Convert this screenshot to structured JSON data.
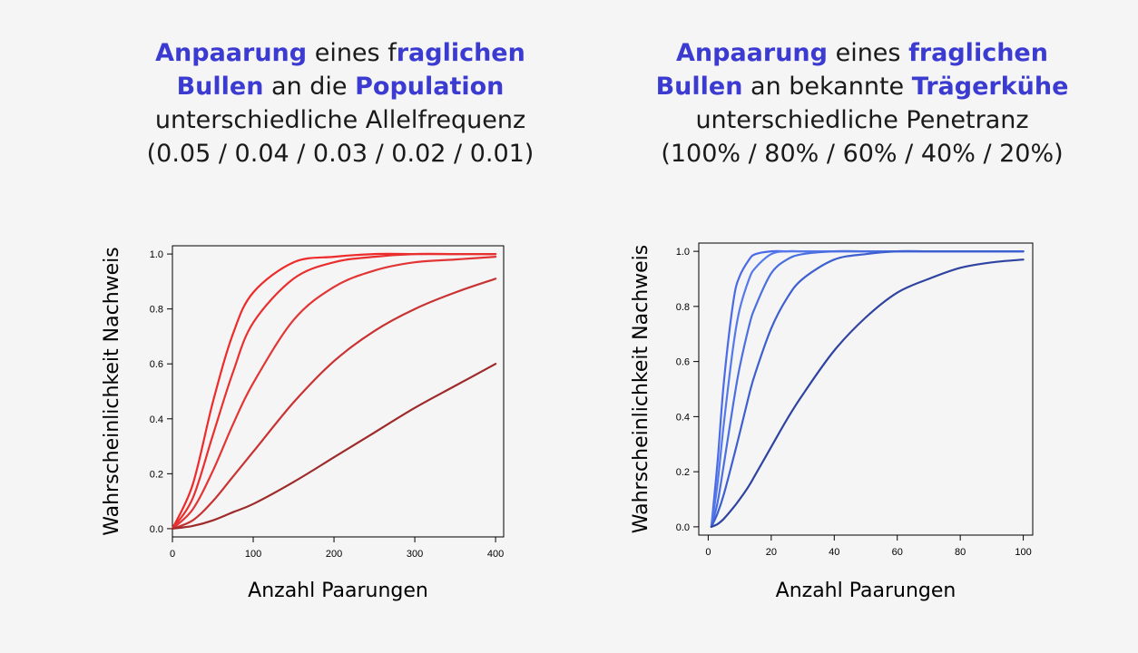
{
  "left_title": {
    "w1": "Anpaarung",
    "t1": " eines f",
    "w2": "raglichen",
    "w3": "Bullen",
    "t2": " an die ",
    "w4": "Population",
    "line3": "unterschiedliche Allelfrequenz",
    "line4": "(0.05 / 0.04 / 0.03 / 0.02 / 0.01)"
  },
  "right_title": {
    "w1": "Anpaarung",
    "t1": " eines ",
    "w2": "fraglichen",
    "w3": "Bullen",
    "t2": " an bekannte ",
    "w4": "Trägerkühe",
    "line3": "unterschiedliche Penetranz",
    "line4": "(100% / 80% / 60% / 40% / 20%)"
  },
  "colors": {
    "highlight": "#3b3bd1",
    "background": "#f5f5f5"
  },
  "chart_data": [
    {
      "type": "line",
      "xlabel": "Anzahl Paarungen",
      "ylabel": "Wahrscheinlichkeit Nachweis",
      "xlim": [
        0,
        410
      ],
      "ylim": [
        -0.03,
        1.03
      ],
      "xticks": [
        0,
        100,
        200,
        300,
        400
      ],
      "yticks": [
        0.0,
        0.2,
        0.4,
        0.6,
        0.8,
        1.0
      ],
      "x": [
        0,
        25,
        50,
        75,
        100,
        150,
        200,
        250,
        300,
        350,
        400
      ],
      "series": [
        {
          "color": "#ee2a2a",
          "values": [
            0.0,
            0.16,
            0.46,
            0.71,
            0.86,
            0.97,
            0.99,
            1.0,
            1.0,
            1.0,
            1.0
          ]
        },
        {
          "color": "#e83030",
          "values": [
            0.0,
            0.11,
            0.34,
            0.57,
            0.75,
            0.91,
            0.97,
            0.99,
            1.0,
            1.0,
            1.0
          ]
        },
        {
          "color": "#e23535",
          "values": [
            0.0,
            0.07,
            0.21,
            0.38,
            0.53,
            0.76,
            0.88,
            0.94,
            0.97,
            0.98,
            0.99
          ]
        },
        {
          "color": "#c93232",
          "values": [
            0.0,
            0.03,
            0.1,
            0.19,
            0.28,
            0.46,
            0.61,
            0.72,
            0.8,
            0.86,
            0.91
          ]
        },
        {
          "color": "#9e2a2a",
          "values": [
            0.0,
            0.01,
            0.03,
            0.06,
            0.09,
            0.17,
            0.26,
            0.35,
            0.44,
            0.52,
            0.6
          ]
        }
      ]
    },
    {
      "type": "line",
      "xlabel": "Anzahl Paarungen",
      "ylabel": "Wahrscheinlichkeit Nachweis",
      "xlim": [
        -3,
        103
      ],
      "ylim": [
        -0.03,
        1.03
      ],
      "xticks": [
        0,
        20,
        40,
        60,
        80,
        100
      ],
      "yticks": [
        0.0,
        0.2,
        0.4,
        0.6,
        0.8,
        1.0
      ],
      "x": [
        1,
        3,
        5,
        8,
        10,
        13,
        15,
        20,
        25,
        30,
        40,
        50,
        60,
        70,
        80,
        90,
        100
      ],
      "series": [
        {
          "color": "#4a6ae8",
          "values": [
            0.0,
            0.24,
            0.53,
            0.82,
            0.91,
            0.97,
            0.99,
            1.0,
            1.0,
            1.0,
            1.0,
            1.0,
            1.0,
            1.0,
            1.0,
            1.0,
            1.0
          ]
        },
        {
          "color": "#5578ea",
          "values": [
            0.0,
            0.16,
            0.38,
            0.66,
            0.79,
            0.9,
            0.94,
            0.99,
            1.0,
            1.0,
            1.0,
            1.0,
            1.0,
            1.0,
            1.0,
            1.0,
            1.0
          ]
        },
        {
          "color": "#4b6fe0",
          "values": [
            0.0,
            0.09,
            0.23,
            0.45,
            0.58,
            0.73,
            0.8,
            0.92,
            0.97,
            0.99,
            1.0,
            1.0,
            1.0,
            1.0,
            1.0,
            1.0,
            1.0
          ]
        },
        {
          "color": "#3d5fcf",
          "values": [
            0.0,
            0.05,
            0.12,
            0.25,
            0.34,
            0.48,
            0.56,
            0.72,
            0.83,
            0.9,
            0.97,
            0.99,
            1.0,
            1.0,
            1.0,
            1.0,
            1.0
          ]
        },
        {
          "color": "#2f43a0",
          "values": [
            0.0,
            0.01,
            0.03,
            0.07,
            0.1,
            0.15,
            0.19,
            0.29,
            0.39,
            0.48,
            0.64,
            0.76,
            0.85,
            0.9,
            0.94,
            0.96,
            0.97
          ]
        }
      ]
    }
  ]
}
